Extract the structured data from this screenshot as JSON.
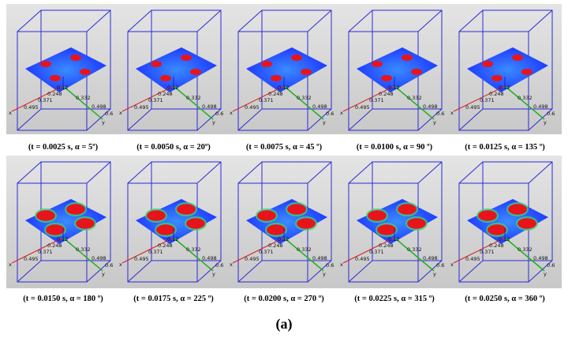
{
  "figure": {
    "label": "(a)",
    "axis_labels": {
      "x": "x",
      "y": "y",
      "x_ticks": [
        "0.12",
        "0.248",
        "0.371",
        "0.495"
      ],
      "y_ticks": [
        "0.332",
        "0.498",
        "0.6"
      ]
    },
    "rows": [
      {
        "panels": [
          {
            "caption": "(t = 0.0025 s, α = 5º)"
          },
          {
            "caption": "(t = 0.0050 s, α = 20º)"
          },
          {
            "caption": "(t = 0.0075 s, α = 45 º)"
          },
          {
            "caption": "(t = 0.0100 s, α = 90 º)"
          },
          {
            "caption": "(t = 0.0125 s, α = 135 º)"
          }
        ]
      },
      {
        "panels": [
          {
            "caption": "(t = 0.0150 s, α = 180 º)"
          },
          {
            "caption": "(t = 0.0175 s, α = 225 º)"
          },
          {
            "caption": "(t = 0.0200 s, α = 270 º)"
          },
          {
            "caption": "(t = 0.0225 s, α = 315 º)"
          },
          {
            "caption": "(t = 0.0250 s, α = 360 º)"
          }
        ]
      }
    ]
  }
}
